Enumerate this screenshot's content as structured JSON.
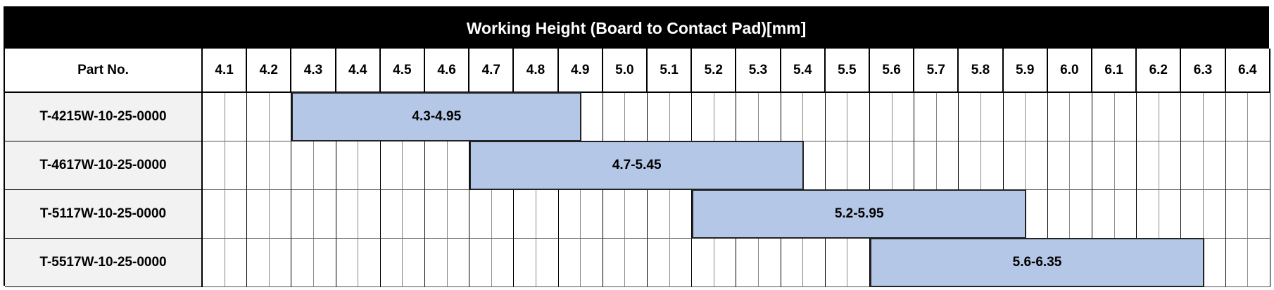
{
  "title": "Working Height (Board to Contact Pad)[mm]",
  "part_header": "Part No.",
  "columns": [
    "4.1",
    "4.2",
    "4.3",
    "4.4",
    "4.5",
    "4.6",
    "4.7",
    "4.8",
    "4.9",
    "5.0",
    "5.1",
    "5.2",
    "5.3",
    "5.4",
    "5.5",
    "5.6",
    "5.7",
    "5.8",
    "5.9",
    "6.0",
    "6.1",
    "6.2",
    "6.3",
    "6.4"
  ],
  "rows": [
    {
      "part": "T-4215W-10-25-0000",
      "range_label": "4.3-4.95",
      "min": 4.3,
      "max": 4.95
    },
    {
      "part": "T-4617W-10-25-0000",
      "range_label": "4.7-5.45",
      "min": 4.7,
      "max": 5.45
    },
    {
      "part": "T-5117W-10-25-0000",
      "range_label": "5.2-5.95",
      "min": 5.2,
      "max": 5.95
    },
    {
      "part": "T-5517W-10-25-0000",
      "range_label": "5.6-6.35",
      "min": 5.6,
      "max": 6.35
    }
  ],
  "colors": {
    "bar": "#b4c7e7",
    "part_cell": "#f2f2f2",
    "title_bg": "#000000"
  }
}
